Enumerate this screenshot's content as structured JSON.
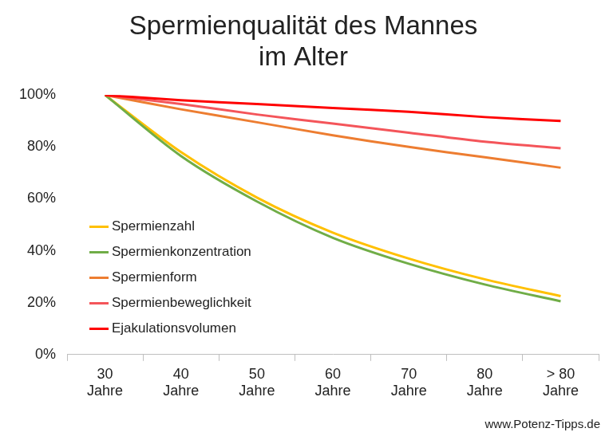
{
  "chart_data": {
    "type": "line",
    "title": [
      "Spermienqualität des Mannes",
      "im Alter"
    ],
    "source": "www.Potenz-Tipps.de",
    "categories": [
      "30 Jahre",
      "40 Jahre",
      "50 Jahre",
      "60 Jahre",
      "70 Jahre",
      "80 Jahre",
      "> 80 Jahre"
    ],
    "series": [
      {
        "name": "Spermienzahl",
        "color": "#ffc000",
        "values": [
          100,
          78,
          60.5,
          47,
          37,
          29,
          22.5
        ]
      },
      {
        "name": "Spermienkonzentration",
        "color": "#70ad47",
        "values": [
          100,
          76.5,
          59,
          45,
          35,
          27,
          20.5
        ]
      },
      {
        "name": "Spermienform",
        "color": "#ed7d31",
        "values": [
          100,
          94.5,
          89.5,
          84.5,
          80,
          76,
          72
        ]
      },
      {
        "name": "Spermienbeweglichkeit",
        "color": "#f4555a",
        "values": [
          100,
          96.5,
          92.5,
          89,
          85.5,
          82,
          79.5
        ]
      },
      {
        "name": "Ejakulationsvolumen",
        "color": "#ff0000",
        "values": [
          100,
          98,
          96.5,
          95,
          93.5,
          91.5,
          90
        ]
      }
    ],
    "ylim": [
      0,
      100
    ],
    "yticks": [
      {
        "value": 0,
        "label": "0%"
      },
      {
        "value": 20,
        "label": "20%"
      },
      {
        "value": 40,
        "label": "40%"
      },
      {
        "value": 60,
        "label": "60%"
      },
      {
        "value": 80,
        "label": "80%"
      },
      {
        "value": 100,
        "label": "100%"
      }
    ],
    "grid": false,
    "legend": "lower left"
  }
}
